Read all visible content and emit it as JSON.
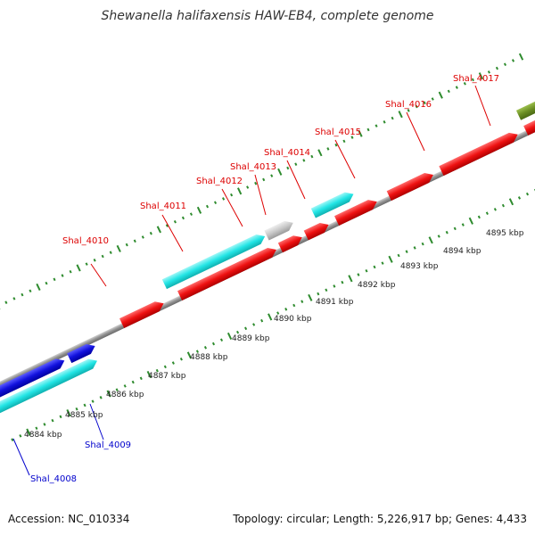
{
  "title": "Shewanella halifaxensis HAW-EB4, complete genome",
  "footer": {
    "accession": "Accession: NC_010334",
    "topology": "Topology: circular; Length: 5,226,917 bp; Genes: 4,433"
  },
  "colors": {
    "red_gene": "#ee1111",
    "cyan_gene": "#22e5e5",
    "blue_gene": "#1111dd",
    "gray_gene": "#c8c8c8",
    "olive_gene": "#6b8e23",
    "backbone": "#909090",
    "ruler": "#2e8b2e",
    "label_red": "#dd0000",
    "label_blue": "#0000cc"
  },
  "gene_labels": [
    {
      "text": "Shal_4008",
      "color": "blue"
    },
    {
      "text": "Shal_4009",
      "color": "blue"
    },
    {
      "text": "Shal_4010",
      "color": "red"
    },
    {
      "text": "Shal_4011",
      "color": "red"
    },
    {
      "text": "Shal_4012",
      "color": "red"
    },
    {
      "text": "Shal_4013",
      "color": "red"
    },
    {
      "text": "Shal_4014",
      "color": "red"
    },
    {
      "text": "Shal_4015",
      "color": "red"
    },
    {
      "text": "Shal_4016",
      "color": "red"
    },
    {
      "text": "Shal_4017",
      "color": "red"
    }
  ],
  "ruler_labels": [
    "4884 kbp",
    "4885 kbp",
    "4886 kbp",
    "4887 kbp",
    "4888 kbp",
    "4889 kbp",
    "4890 kbp",
    "4891 kbp",
    "4892 kbp",
    "4893 kbp",
    "4894 kbp",
    "4895 kbp"
  ]
}
